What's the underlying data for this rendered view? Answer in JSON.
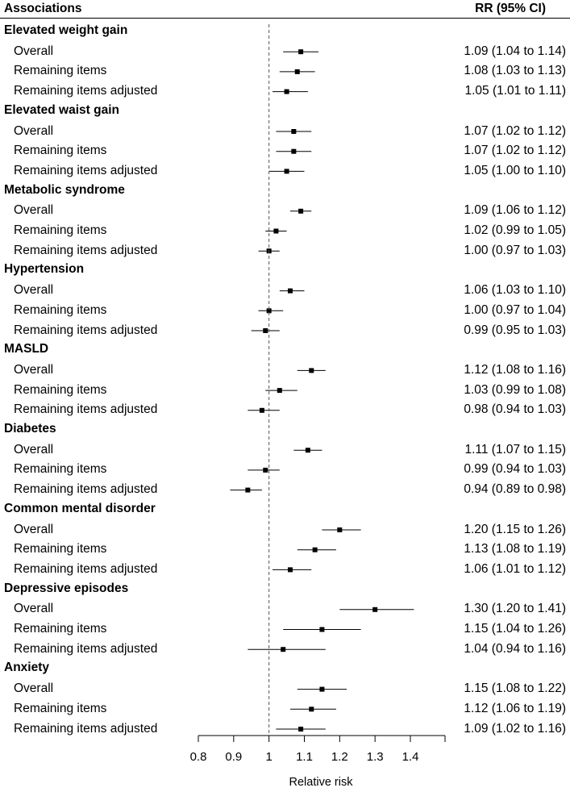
{
  "chart_data": {
    "type": "forest",
    "header": {
      "left": "Associations",
      "right": "RR (95% CI)"
    },
    "xlabel": "Relative risk",
    "xlim": [
      0.8,
      1.4
    ],
    "ticks": [
      "0.8",
      "0.9",
      "1",
      "1.1",
      "1.2",
      "1.3",
      "1.4"
    ],
    "tick_values": [
      0.8,
      0.9,
      1.0,
      1.1,
      1.2,
      1.3,
      1.4
    ],
    "reference_line": 1.0,
    "groups": [
      {
        "name": "Elevated weight gain",
        "rows": [
          {
            "label": "Overall",
            "rr": 1.09,
            "lo": 1.04,
            "hi": 1.14,
            "text": "1.09 (1.04 to 1.14)"
          },
          {
            "label": "Remaining items",
            "rr": 1.08,
            "lo": 1.03,
            "hi": 1.13,
            "text": "1.08 (1.03 to 1.13)"
          },
          {
            "label": "Remaining items adjusted",
            "rr": 1.05,
            "lo": 1.01,
            "hi": 1.11,
            "text": "1.05 (1.01 to 1.11)"
          }
        ]
      },
      {
        "name": "Elevated waist gain",
        "rows": [
          {
            "label": "Overall",
            "rr": 1.07,
            "lo": 1.02,
            "hi": 1.12,
            "text": "1.07 (1.02 to 1.12)"
          },
          {
            "label": "Remaining items",
            "rr": 1.07,
            "lo": 1.02,
            "hi": 1.12,
            "text": "1.07 (1.02 to 1.12)"
          },
          {
            "label": "Remaining items adjusted",
            "rr": 1.05,
            "lo": 1.0,
            "hi": 1.1,
            "text": "1.05 (1.00 to 1.10)"
          }
        ]
      },
      {
        "name": "Metabolic syndrome",
        "rows": [
          {
            "label": "Overall",
            "rr": 1.09,
            "lo": 1.06,
            "hi": 1.12,
            "text": "1.09 (1.06 to 1.12)"
          },
          {
            "label": "Remaining items",
            "rr": 1.02,
            "lo": 0.99,
            "hi": 1.05,
            "text": "1.02 (0.99 to 1.05)"
          },
          {
            "label": "Remaining items adjusted",
            "rr": 1.0,
            "lo": 0.97,
            "hi": 1.03,
            "text": "1.00 (0.97 to 1.03)"
          }
        ]
      },
      {
        "name": "Hypertension",
        "rows": [
          {
            "label": "Overall",
            "rr": 1.06,
            "lo": 1.03,
            "hi": 1.1,
            "text": "1.06 (1.03 to 1.10)"
          },
          {
            "label": "Remaining items",
            "rr": 1.0,
            "lo": 0.97,
            "hi": 1.04,
            "text": "1.00 (0.97 to 1.04)"
          },
          {
            "label": "Remaining items adjusted",
            "rr": 0.99,
            "lo": 0.95,
            "hi": 1.03,
            "text": "0.99 (0.95 to 1.03)"
          }
        ]
      },
      {
        "name": "MASLD",
        "rows": [
          {
            "label": "Overall",
            "rr": 1.12,
            "lo": 1.08,
            "hi": 1.16,
            "text": "1.12 (1.08 to 1.16)"
          },
          {
            "label": "Remaining items",
            "rr": 1.03,
            "lo": 0.99,
            "hi": 1.08,
            "text": "1.03 (0.99 to 1.08)"
          },
          {
            "label": "Remaining items adjusted",
            "rr": 0.98,
            "lo": 0.94,
            "hi": 1.03,
            "text": "0.98 (0.94 to 1.03)"
          }
        ]
      },
      {
        "name": "Diabetes",
        "rows": [
          {
            "label": "Overall",
            "rr": 1.11,
            "lo": 1.07,
            "hi": 1.15,
            "text": "1.11 (1.07 to 1.15)"
          },
          {
            "label": "Remaining items",
            "rr": 0.99,
            "lo": 0.94,
            "hi": 1.03,
            "text": "0.99 (0.94 to 1.03)"
          },
          {
            "label": "Remaining items adjusted",
            "rr": 0.94,
            "lo": 0.89,
            "hi": 0.98,
            "text": "0.94 (0.89 to 0.98)"
          }
        ]
      },
      {
        "name": "Common mental disorder",
        "rows": [
          {
            "label": "Overall",
            "rr": 1.2,
            "lo": 1.15,
            "hi": 1.26,
            "text": "1.20 (1.15 to 1.26)"
          },
          {
            "label": "Remaining items",
            "rr": 1.13,
            "lo": 1.08,
            "hi": 1.19,
            "text": "1.13 (1.08 to 1.19)"
          },
          {
            "label": "Remaining items adjusted",
            "rr": 1.06,
            "lo": 1.01,
            "hi": 1.12,
            "text": "1.06 (1.01 to 1.12)"
          }
        ]
      },
      {
        "name": "Depressive episodes",
        "rows": [
          {
            "label": "Overall",
            "rr": 1.3,
            "lo": 1.2,
            "hi": 1.41,
            "text": "1.30 (1.20 to 1.41)"
          },
          {
            "label": "Remaining items",
            "rr": 1.15,
            "lo": 1.04,
            "hi": 1.26,
            "text": "1.15 (1.04 to 1.26)"
          },
          {
            "label": "Remaining items adjusted",
            "rr": 1.04,
            "lo": 0.94,
            "hi": 1.16,
            "text": "1.04 (0.94 to 1.16)"
          }
        ]
      },
      {
        "name": "Anxiety",
        "rows": [
          {
            "label": "Overall",
            "rr": 1.15,
            "lo": 1.08,
            "hi": 1.22,
            "text": "1.15 (1.08 to 1.22)"
          },
          {
            "label": "Remaining items",
            "rr": 1.12,
            "lo": 1.06,
            "hi": 1.19,
            "text": "1.12 (1.06 to 1.19)"
          },
          {
            "label": "Remaining items adjusted",
            "rr": 1.09,
            "lo": 1.02,
            "hi": 1.16,
            "text": "1.09 (1.02 to 1.16)"
          }
        ]
      }
    ]
  }
}
